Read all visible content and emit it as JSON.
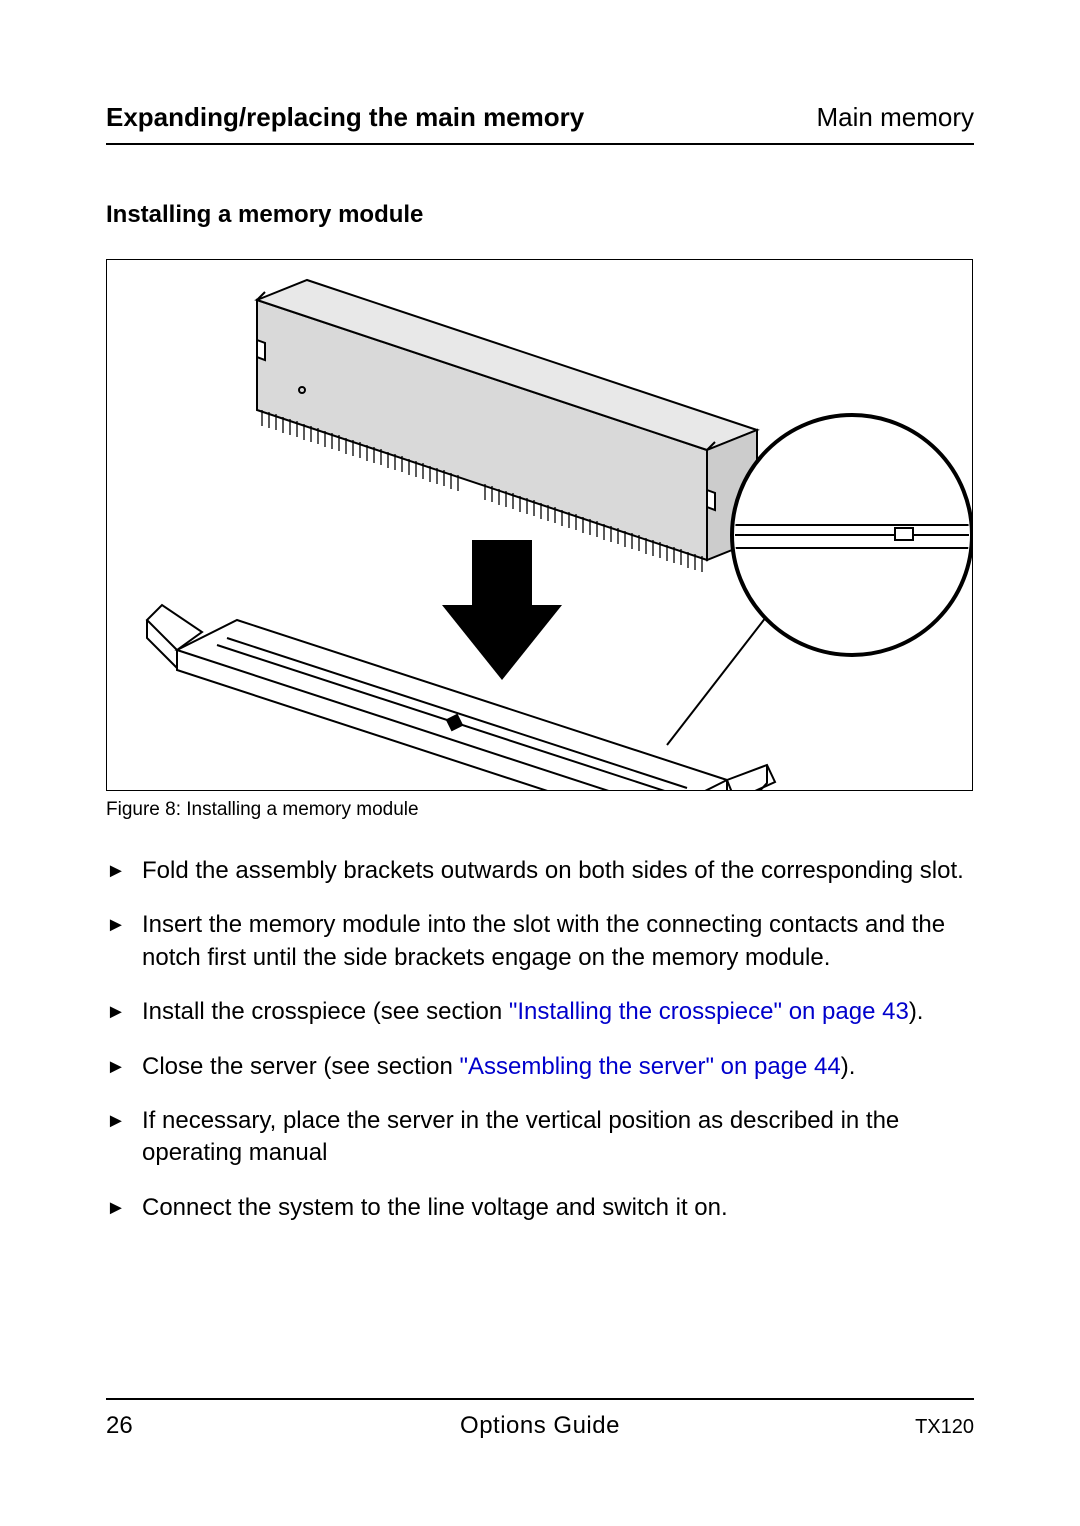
{
  "header": {
    "left": "Expanding/replacing the main memory",
    "right": "Main memory"
  },
  "subheading": "Installing a memory module",
  "figure": {
    "caption": "Figure 8: Installing a memory module",
    "border_color": "#000000",
    "bg": "#ffffff",
    "module_fill": "#d9d9d9",
    "stroke": "#000000"
  },
  "steps": [
    {
      "segments": [
        {
          "text": "Fold the assembly brackets outwards on both sides of the corresponding slot."
        }
      ]
    },
    {
      "segments": [
        {
          "text": "Insert the memory module into the slot with the connecting contacts and the notch first until the side brackets engage on the memory module."
        }
      ]
    },
    {
      "segments": [
        {
          "text": "Install the crosspiece (see section "
        },
        {
          "text": "\"Installing the crosspiece\" on page 43",
          "link": true
        },
        {
          "text": ")."
        }
      ]
    },
    {
      "segments": [
        {
          "text": "Close the server (see section "
        },
        {
          "text": "\"Assembling the server\" on page 44",
          "link": true
        },
        {
          "text": ")."
        }
      ]
    },
    {
      "segments": [
        {
          "text": "If necessary, place the server in the vertical position as described in the operating manual"
        }
      ]
    },
    {
      "segments": [
        {
          "text": "Connect the system to the line voltage and switch it on."
        }
      ]
    }
  ],
  "footer": {
    "page": "26",
    "center": "Options Guide",
    "right": "TX120"
  },
  "colors": {
    "text": "#000000",
    "link": "#0000cc",
    "rule": "#000000",
    "bg": "#ffffff"
  },
  "typography": {
    "body_fontsize": 24,
    "header_fontsize": 26,
    "caption_fontsize": 19,
    "footer_fontsize": 24,
    "footer_right_fontsize": 20
  }
}
